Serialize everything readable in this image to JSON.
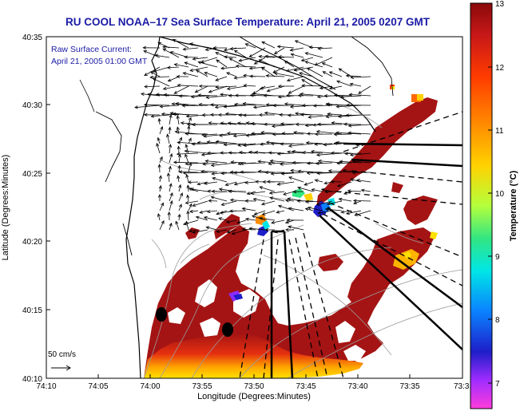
{
  "title": "RU COOL  NOAA–17  Sea Surface Temperature:  April 21, 2005 0207 GMT",
  "current_label_line1": "Raw Surface Current:",
  "current_label_line2": "April 21, 2005 01:00 GMT",
  "scale_label": "50 cm/s",
  "x_axis_label": "Longitude (Degrees:Minutes)",
  "y_axis_label": "Latitude (Degrees:Minutes)",
  "colorbar_label": "Temperature (°C)",
  "x_ticks": [
    "74:10",
    "74:05",
    "74:00",
    "73:55",
    "73:50",
    "73:45",
    "73:40",
    "73:35",
    "73:3"
  ],
  "y_ticks": [
    "40:35",
    "40:30",
    "40:25",
    "40:20",
    "40:15",
    "40:10"
  ],
  "colorbar_ticks": [
    "13",
    "12",
    "11",
    "10",
    "9",
    "8",
    "7"
  ],
  "colors": {
    "title_text": "#1a1aa6",
    "land": "#ffffff",
    "sst_warm": "#a51414",
    "coast": "#000000",
    "bathymetry": "#9a9a9a"
  }
}
